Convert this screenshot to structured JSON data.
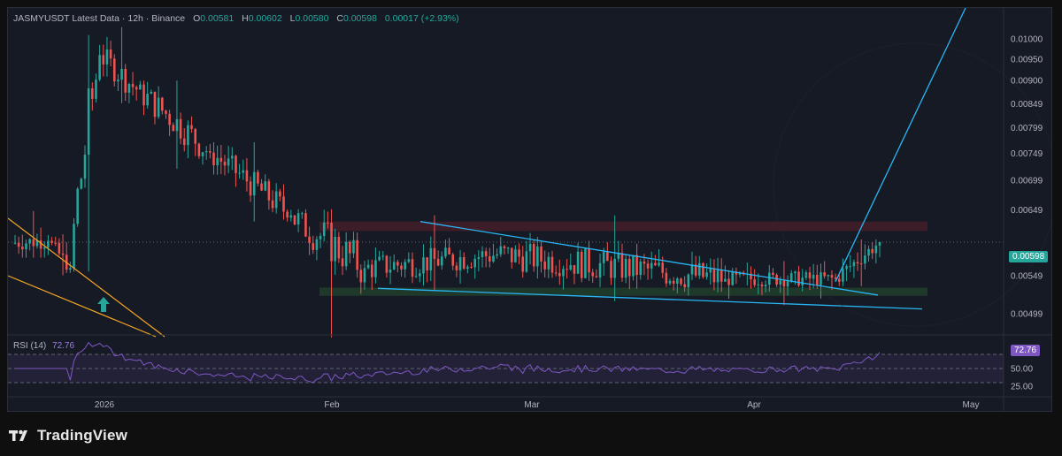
{
  "header": {
    "symbol_line": "JASMYUSDT Latest Data · 12h · Binance",
    "open_label": "O",
    "open": "0.00581",
    "high_label": "H",
    "high": "0.00602",
    "low_label": "L",
    "low": "0.00580",
    "close_label": "C",
    "close": "0.00598",
    "change": "0.00017 (+2.93%)"
  },
  "rsi_panel": {
    "name": "RSI (14)",
    "value": "72.76"
  },
  "current_price_tag": "0.00598",
  "rsi_value_tag": "72.76",
  "brand": {
    "name": "TradingView"
  },
  "colors": {
    "up": "#26a69a",
    "down": "#ef5350",
    "trendline": "#29b6f6",
    "wedge": "#f5a623",
    "resistance_zone": "#4a1f2a",
    "support_zone": "#1f3d2a",
    "rsi_line": "#7e57c2"
  },
  "chart_data": [
    {
      "type": "candlestick",
      "title": "JASMYUSDT Latest Data · 12h · Binance",
      "x_ticks": [
        "2026",
        "Feb",
        "Mar",
        "Apr",
        "May"
      ],
      "y_ticks": [
        "0.01000",
        "0.00950",
        "0.00900",
        "0.00849",
        "0.00799",
        "0.00749",
        "0.00699",
        "0.00649",
        "0.00549",
        "0.00499"
      ],
      "ylim": [
        0.00475,
        0.01025
      ],
      "y_scale": "log",
      "last_close": 0.00598,
      "grid": false,
      "zones": [
        {
          "kind": "resistance",
          "low": 0.00615,
          "high": 0.0063
        },
        {
          "kind": "support",
          "low": 0.00522,
          "high": 0.00533
        }
      ],
      "candle_groups": [
        {
          "period": "late Dec",
          "open": 0.00597,
          "high": 0.00647,
          "low": 0.00575,
          "close": 0.006
        },
        {
          "period": "end Dec",
          "open": 0.006,
          "high": 0.0061,
          "low": 0.0055,
          "close": 0.0056
        },
        {
          "period": "1-5 Jan",
          "open": 0.0056,
          "high": 0.0101,
          "low": 0.00555,
          "close": 0.0096
        },
        {
          "period": "5-10 Jan",
          "open": 0.0096,
          "high": 0.0103,
          "low": 0.0085,
          "close": 0.0088
        },
        {
          "period": "10-20 Jan",
          "open": 0.0088,
          "high": 0.009,
          "low": 0.0072,
          "close": 0.0075
        },
        {
          "period": "20-31 Jan",
          "open": 0.0075,
          "high": 0.0077,
          "low": 0.0063,
          "close": 0.0064
        },
        {
          "period": "1-10 Feb",
          "open": 0.0064,
          "high": 0.0065,
          "low": 0.0047,
          "close": 0.0056
        },
        {
          "period": "10-28 Feb",
          "open": 0.0056,
          "high": 0.0064,
          "low": 0.0053,
          "close": 0.0058
        },
        {
          "period": "Mar",
          "open": 0.0058,
          "high": 0.0064,
          "low": 0.00515,
          "close": 0.00545
        },
        {
          "period": "1-15 Apr",
          "open": 0.00545,
          "high": 0.0057,
          "low": 0.0051,
          "close": 0.00545
        },
        {
          "period": "15-21 Apr",
          "open": 0.00545,
          "high": 0.00602,
          "low": 0.00535,
          "close": 0.00598
        }
      ],
      "annotations": [
        {
          "kind": "descending-trendline",
          "label": ""
        },
        {
          "kind": "lower-trendline",
          "label": ""
        },
        {
          "kind": "projection-line",
          "label": ""
        },
        {
          "kind": "falling-wedge",
          "label": ""
        },
        {
          "kind": "breakout-arrow",
          "label": ""
        }
      ]
    },
    {
      "type": "line",
      "title": "RSI (14)",
      "y_ticks": [
        "75.00",
        "50.00",
        "25.00"
      ],
      "ylim": [
        15,
        95
      ],
      "levels": [
        70,
        50,
        30
      ],
      "last_value": 72.76
    }
  ]
}
